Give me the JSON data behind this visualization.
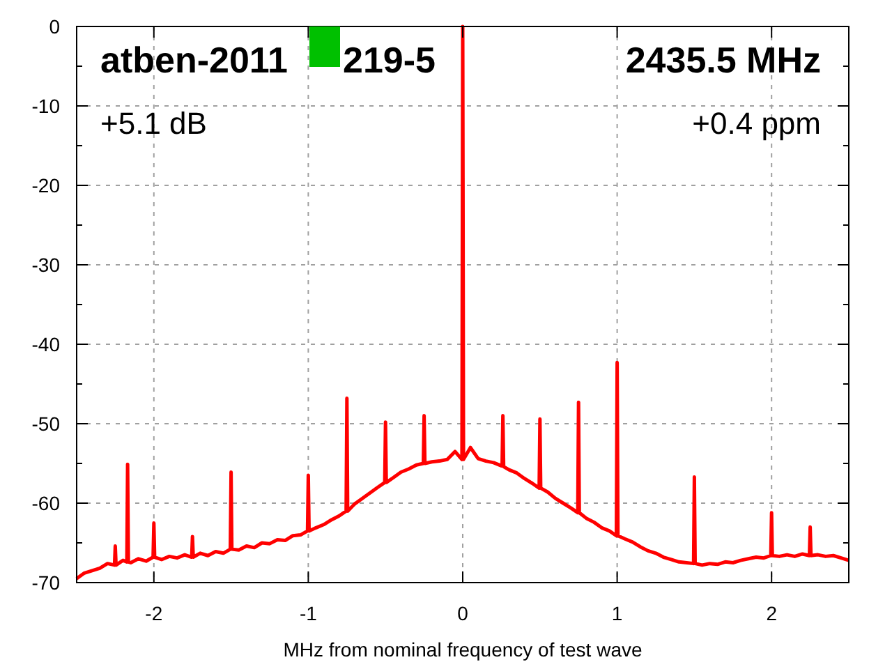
{
  "chart_data": {
    "type": "line",
    "xlabel": "MHz from nominal frequency of test wave",
    "annotations": [
      "atben-2011",
      "219-5",
      "2435.5 MHz",
      "+5.1 dB",
      "+0.4 ppm"
    ],
    "xlim": [
      -2.5,
      2.5
    ],
    "xticks": [
      -2,
      -1,
      0,
      1,
      2
    ],
    "ylim": [
      -70,
      0
    ],
    "yticks": [
      0,
      {
        "value": -5,
        "label": null
      },
      -10,
      {
        "value": -15,
        "label": null
      },
      -20,
      {
        "value": -25,
        "label": null
      },
      -30,
      {
        "value": -35,
        "label": null
      },
      -40,
      {
        "value": -45,
        "label": null
      },
      -50,
      {
        "value": -55,
        "label": null
      },
      -60,
      {
        "value": -65,
        "label": null
      },
      -70
    ],
    "grid": true,
    "marker": "none",
    "line_style": "solid",
    "series": [
      {
        "color": "#ff0000",
        "x": [
          -2.5,
          -2.45,
          -2.4,
          -2.35,
          -2.3,
          -2.255,
          -2.25,
          -2.245,
          -2.2,
          -2.175,
          -2.17,
          -2.165,
          -2.15,
          -2.1,
          -2.05,
          -2.005,
          -2.0,
          -1.995,
          -1.95,
          -1.9,
          -1.85,
          -1.8,
          -1.755,
          -1.75,
          -1.745,
          -1.7,
          -1.65,
          -1.6,
          -1.55,
          -1.505,
          -1.5,
          -1.495,
          -1.45,
          -1.4,
          -1.35,
          -1.3,
          -1.25,
          -1.2,
          -1.15,
          -1.1,
          -1.05,
          -1.005,
          -1.0,
          -0.995,
          -0.95,
          -0.9,
          -0.85,
          -0.8,
          -0.755,
          -0.75,
          -0.745,
          -0.7,
          -0.65,
          -0.6,
          -0.55,
          -0.505,
          -0.5,
          -0.495,
          -0.45,
          -0.4,
          -0.35,
          -0.3,
          -0.255,
          -0.25,
          -0.245,
          -0.2,
          -0.15,
          -0.1,
          -0.05,
          -0.005,
          0,
          0.005,
          0.05,
          0.1,
          0.15,
          0.2,
          0.25,
          0.255,
          0.26,
          0.265,
          0.3,
          0.35,
          0.4,
          0.45,
          0.495,
          0.5,
          0.505,
          0.55,
          0.6,
          0.65,
          0.7,
          0.745,
          0.75,
          0.755,
          0.8,
          0.85,
          0.9,
          0.95,
          0.995,
          1.0,
          1.005,
          1.05,
          1.1,
          1.15,
          1.2,
          1.25,
          1.3,
          1.35,
          1.4,
          1.45,
          1.495,
          1.5,
          1.505,
          1.55,
          1.6,
          1.65,
          1.7,
          1.75,
          1.8,
          1.85,
          1.9,
          1.95,
          1.995,
          2.0,
          2.005,
          2.05,
          2.1,
          2.15,
          2.2,
          2.245,
          2.25,
          2.255,
          2.3,
          2.35,
          2.4,
          2.45,
          2.5
        ],
        "values": [
          -69.5,
          -68.8,
          -68.5,
          -68.2,
          -67.6,
          -67.8,
          -65.4,
          -67.8,
          -67.2,
          -67.4,
          -55.1,
          -67.4,
          -67.5,
          -67.0,
          -67.3,
          -66.8,
          -62.5,
          -66.8,
          -67.1,
          -66.7,
          -66.9,
          -66.5,
          -66.8,
          -64.2,
          -66.8,
          -66.3,
          -66.6,
          -66.1,
          -66.3,
          -65.8,
          -56.1,
          -65.8,
          -65.9,
          -65.4,
          -65.6,
          -65.0,
          -65.1,
          -64.6,
          -64.7,
          -64.1,
          -64.0,
          -63.5,
          -56.5,
          -63.5,
          -63.1,
          -62.7,
          -62.1,
          -61.6,
          -61.0,
          -46.8,
          -61.0,
          -60.1,
          -59.4,
          -58.7,
          -58.0,
          -57.4,
          -49.8,
          -57.4,
          -56.8,
          -56.1,
          -55.7,
          -55.2,
          -55.0,
          -49.0,
          -55.0,
          -54.8,
          -54.7,
          -54.5,
          -53.5,
          -54.5,
          0,
          -54.5,
          -53.0,
          -54.4,
          -54.7,
          -54.9,
          -55.3,
          -55.3,
          -49.0,
          -55.4,
          -55.8,
          -56.2,
          -56.9,
          -57.5,
          -58.1,
          -49.4,
          -58.1,
          -58.6,
          -59.4,
          -60.0,
          -60.6,
          -61.2,
          -47.3,
          -61.2,
          -61.9,
          -62.4,
          -63.1,
          -63.5,
          -64.1,
          -42.3,
          -64.1,
          -64.5,
          -64.9,
          -65.5,
          -66.0,
          -66.3,
          -66.8,
          -67.1,
          -67.4,
          -67.5,
          -67.6,
          -56.7,
          -67.6,
          -67.8,
          -67.6,
          -67.7,
          -67.4,
          -67.5,
          -67.2,
          -67.0,
          -66.8,
          -66.9,
          -66.6,
          -61.2,
          -66.6,
          -66.7,
          -66.5,
          -66.7,
          -66.4,
          -66.6,
          -63.0,
          -66.6,
          -66.5,
          -66.7,
          -66.6,
          -66.9,
          -67.2
        ]
      }
    ]
  }
}
